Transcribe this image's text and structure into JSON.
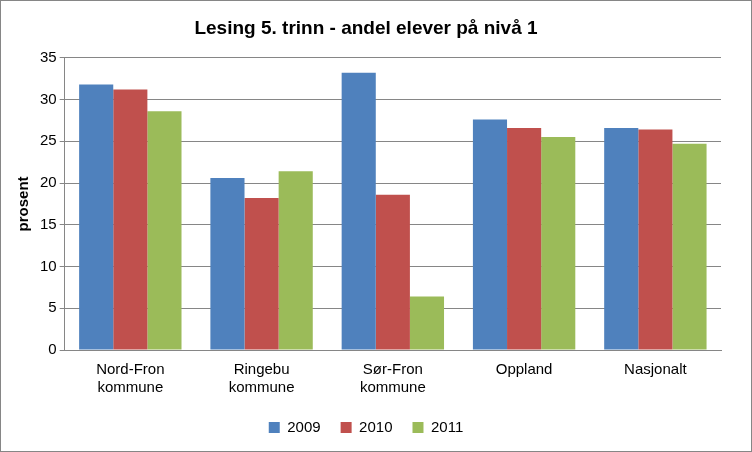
{
  "chart_data": {
    "type": "bar",
    "title": "Lesing 5. trinn - andel elever på nivå 1",
    "y_label": "prosent",
    "categories": [
      "Nord-Fron kommune",
      "Ringebu kommune",
      "Sør-Fron kommune",
      "Oppland",
      "Nasjonalt"
    ],
    "series": [
      {
        "name": "2009",
        "color": "#4f81bd",
        "values": [
          31.8,
          20.6,
          33.2,
          27.6,
          26.6
        ]
      },
      {
        "name": "2010",
        "color": "#c0504d",
        "values": [
          31.2,
          18.2,
          18.6,
          26.6,
          26.4
        ]
      },
      {
        "name": "2011",
        "color": "#9bbb59",
        "values": [
          28.6,
          21.4,
          6.4,
          25.5,
          24.7
        ]
      }
    ],
    "ylim": [
      0,
      35
    ],
    "yticks": [
      0,
      5,
      10,
      15,
      20,
      25,
      30,
      35
    ],
    "grid": true,
    "legend": "bottom"
  }
}
